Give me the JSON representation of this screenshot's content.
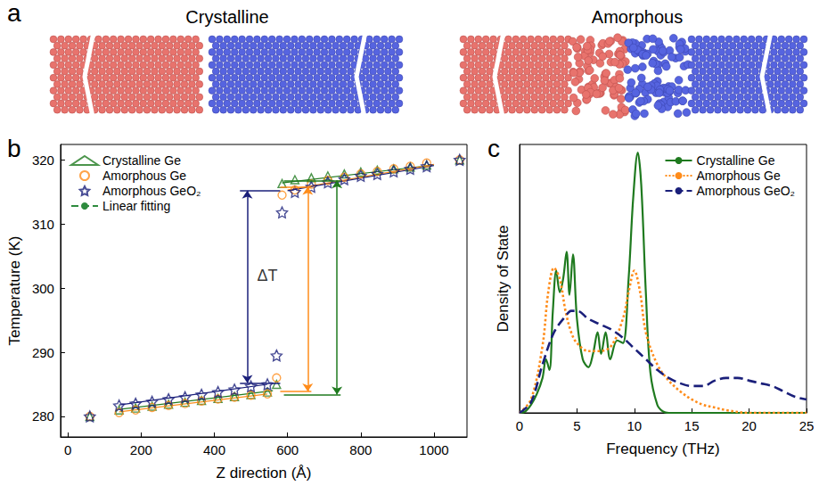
{
  "figure_a": {
    "panel_label": "a",
    "titles": [
      "Crystalline",
      "Amorphous"
    ]
  },
  "chart_data": [
    {
      "type": "scatter",
      "panel_label": "b",
      "x_label": "Z direction (Å)",
      "y_label": "Temperature (K)",
      "xlim": [
        -20,
        1090
      ],
      "xticks": [
        0,
        200,
        400,
        600,
        800,
        1000
      ],
      "ylim": [
        276.8,
        322.4
      ],
      "yticks": [
        280,
        290,
        300,
        310,
        320
      ],
      "grid": false,
      "legend": "upper left",
      "x": [
        60,
        140,
        185,
        230,
        275,
        320,
        365,
        410,
        455,
        500,
        545,
        570,
        585,
        620,
        665,
        710,
        755,
        800,
        845,
        890,
        935,
        980,
        1070
      ],
      "series": [
        {
          "name": "Crystalline Ge",
          "color": "#1f7a1f",
          "marker": "triangle",
          "values": [
            280,
            281,
            281.3,
            281.6,
            281.9,
            282.2,
            282.5,
            282.8,
            283.1,
            283.4,
            283.8,
            285,
            316.3,
            316.9,
            317.2,
            317.5,
            317.8,
            318.1,
            318.4,
            318.6,
            318.9,
            319.2,
            320
          ],
          "fit": [
            {
              "x": [
                140,
                560
              ],
              "y": [
                281.1,
                284
              ]
            },
            {
              "x": [
                585,
                1000
              ],
              "y": [
                316.4,
                319.2
              ]
            }
          ],
          "delta_t": {
            "x": 735,
            "low": 283.4,
            "high": 316.8,
            "span": [
              590,
              745
            ]
          }
        },
        {
          "name": "Amorphous Ge",
          "color": "#ff8c1a",
          "marker": "circle",
          "values": [
            280,
            280.6,
            281,
            281.4,
            281.7,
            282,
            282.4,
            282.7,
            283,
            283.3,
            283.5,
            286,
            314.5,
            315.3,
            316.2,
            316.8,
            317.3,
            317.8,
            318.2,
            318.6,
            319,
            319.5,
            320
          ],
          "fit": [
            {
              "x": [
                140,
                545
              ],
              "y": [
                280.7,
                283.5
              ]
            },
            {
              "x": [
                600,
                1000
              ],
              "y": [
                315.3,
                319.3
              ]
            }
          ],
          "delta_t": {
            "x": 655,
            "low": 283.9,
            "high": 315.8,
            "span": [
              580,
              665
            ]
          }
        },
        {
          "name": "Amorphous GeO₂",
          "color": "#1a1f7a",
          "marker": "star",
          "values": [
            280,
            281.7,
            282,
            282.3,
            282.7,
            283,
            283.4,
            283.8,
            284.2,
            284.7,
            285,
            289.5,
            311.8,
            315,
            315.8,
            316.5,
            317,
            317.5,
            317.8,
            318.2,
            318.6,
            319,
            320
          ],
          "fit": [
            {
              "x": [
                140,
                545
              ],
              "y": [
                281.8,
                285
              ]
            },
            {
              "x": [
                600,
                1000
              ],
              "y": [
                315.2,
                319.1
              ]
            }
          ],
          "delta_t": {
            "x": 490,
            "low": 285.2,
            "high": 315.2,
            "span": [
              470,
              580
            ]
          }
        },
        {
          "name": "Linear fitting",
          "type": "line",
          "color": "#2e8b3e",
          "line_style": "dashed"
        }
      ],
      "annotations": [
        {
          "text": "ΔT",
          "x": 545,
          "y": 302
        }
      ]
    },
    {
      "type": "line",
      "panel_label": "c",
      "x_label": "Frequency (THz)",
      "y_label": "Density of State",
      "xlim": [
        0,
        25
      ],
      "xticks": [
        0,
        5,
        10,
        15,
        20,
        25
      ],
      "ylim": [
        0,
        1
      ],
      "tick_labels": "x",
      "grid": false,
      "legend": "upper right",
      "series": [
        {
          "name": "Crystalline Ge",
          "color": "#1f7a1f",
          "line_style": "solid",
          "x": [
            0,
            0.5,
            1,
            1.5,
            2,
            2.3,
            2.6,
            2.9,
            3.2,
            3.5,
            3.8,
            4.1,
            4.35,
            4.65,
            5,
            5.5,
            6,
            6.4,
            6.8,
            7.1,
            7.5,
            7.9,
            8.5,
            9,
            9.5,
            9.9,
            10.3,
            10.6,
            11,
            11.4,
            12,
            12.5,
            13,
            25
          ],
          "values": [
            0,
            0.005,
            0.03,
            0.07,
            0.13,
            0.2,
            0.16,
            0.38,
            0.53,
            0.45,
            0.5,
            0.6,
            0.44,
            0.59,
            0.35,
            0.2,
            0.17,
            0.22,
            0.3,
            0.22,
            0.3,
            0.2,
            0.27,
            0.26,
            0.5,
            0.8,
            0.97,
            0.85,
            0.45,
            0.15,
            0.03,
            0.005,
            0,
            0
          ]
        },
        {
          "name": "Amorphous Ge",
          "color": "#ff8c1a",
          "line_style": "dotted",
          "x": [
            0,
            1,
            2,
            2.5,
            3,
            3.5,
            4,
            4.5,
            5,
            6,
            7,
            8,
            9,
            9.5,
            10,
            10.5,
            11,
            12,
            13,
            14,
            15,
            16,
            17,
            18,
            20,
            25
          ],
          "values": [
            0,
            0.05,
            0.25,
            0.45,
            0.54,
            0.5,
            0.38,
            0.3,
            0.26,
            0.23,
            0.23,
            0.25,
            0.35,
            0.45,
            0.53,
            0.45,
            0.3,
            0.18,
            0.12,
            0.08,
            0.05,
            0.03,
            0.02,
            0.01,
            0,
            0
          ]
        },
        {
          "name": "Amorphous GeO₂",
          "color": "#1a1f7a",
          "line_style": "dashed",
          "x": [
            0,
            1,
            2,
            3,
            4,
            4.5,
            5,
            6,
            7,
            8,
            9,
            10,
            11,
            12,
            13,
            14,
            15,
            16,
            17,
            18,
            19,
            20,
            21,
            22,
            23,
            24,
            25
          ],
          "values": [
            0,
            0.04,
            0.18,
            0.3,
            0.36,
            0.38,
            0.38,
            0.35,
            0.33,
            0.31,
            0.28,
            0.24,
            0.2,
            0.16,
            0.13,
            0.11,
            0.1,
            0.1,
            0.12,
            0.13,
            0.13,
            0.12,
            0.11,
            0.1,
            0.08,
            0.06,
            0.05
          ]
        }
      ]
    }
  ]
}
